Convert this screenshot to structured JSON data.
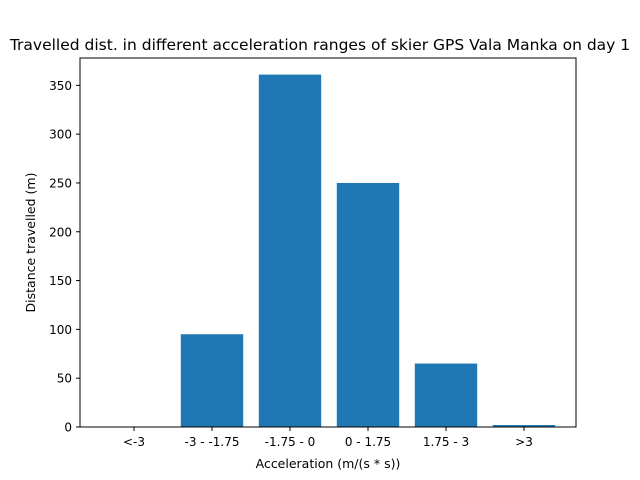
{
  "chart_data": {
    "type": "bar",
    "title": "Travelled dist. in different acceleration ranges of skier GPS Vala Manka on day 1",
    "xlabel": "Acceleration (m/(s * s))",
    "ylabel": "Distance travelled (m)",
    "categories": [
      "<-3",
      "-3 - -1.75",
      "-1.75 - 0",
      "0 - 1.75",
      "1.75 - 3",
      ">3"
    ],
    "values": [
      0,
      95,
      361,
      250,
      65,
      2
    ],
    "ylim": [
      0,
      378
    ],
    "yticks": [
      0,
      50,
      100,
      150,
      200,
      250,
      300,
      350
    ],
    "grid": false,
    "bar_color": "#1f77b4"
  }
}
